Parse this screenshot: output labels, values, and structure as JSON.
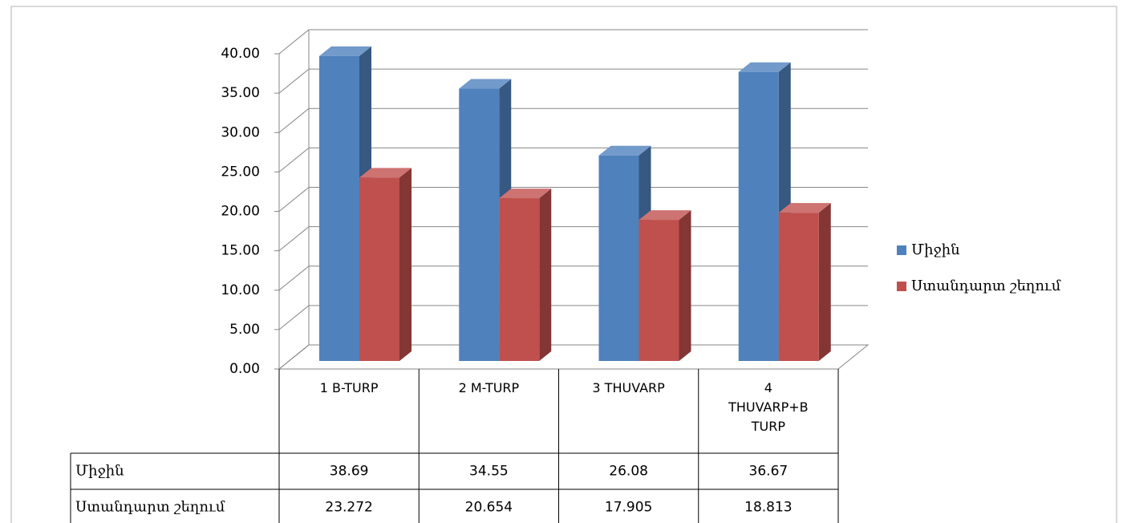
{
  "chart_data": {
    "type": "bar3d",
    "categories": [
      "1 B-TURP",
      "2 M-TURP",
      "3 THUVARP",
      "4 THUVARP+B TURP"
    ],
    "series": [
      {
        "name": "Միջին",
        "color": "#4f81bd",
        "values": [
          38.69,
          34.55,
          26.08,
          36.67
        ]
      },
      {
        "name": "Ստանդարտ շեղում",
        "color": "#c0504d",
        "values": [
          23.272,
          20.654,
          17.905,
          18.813
        ]
      }
    ],
    "ylim": [
      0,
      40
    ],
    "yticks": [
      {
        "value": 0,
        "label": "0.00"
      },
      {
        "value": 5,
        "label": "5.00"
      },
      {
        "value": 10,
        "label": "10.00"
      },
      {
        "value": 15,
        "label": "15.00"
      },
      {
        "value": 20,
        "label": "20.00"
      },
      {
        "value": 25,
        "label": "25.00"
      },
      {
        "value": 30,
        "label": "30.00"
      },
      {
        "value": 35,
        "label": "35.00"
      },
      {
        "value": 40,
        "label": "40.00"
      }
    ],
    "grid": true,
    "legend": "right",
    "data_table": true
  }
}
